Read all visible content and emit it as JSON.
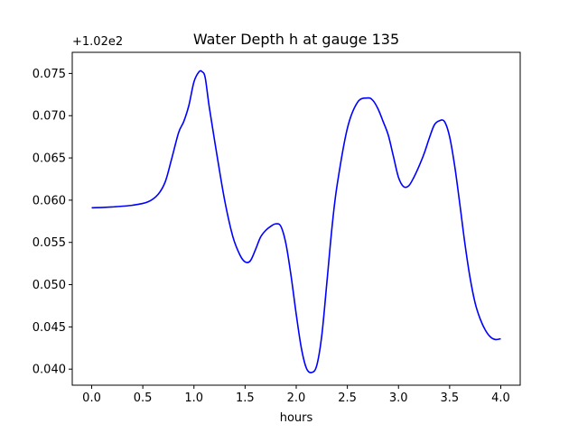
{
  "chart_data": {
    "type": "line",
    "title": "Water Depth h at gauge 135",
    "xlabel": "hours",
    "ylabel": "",
    "y_offset_label": "+1.02e2",
    "xlim": [
      -0.19,
      4.19
    ],
    "ylim": [
      0.0381,
      0.0775
    ],
    "x_ticks": [
      0.0,
      0.5,
      1.0,
      1.5,
      2.0,
      2.5,
      3.0,
      3.5,
      4.0
    ],
    "x_tick_labels": [
      "0.0",
      "0.5",
      "1.0",
      "1.5",
      "2.0",
      "2.5",
      "3.0",
      "3.5",
      "4.0"
    ],
    "y_ticks": [
      0.04,
      0.045,
      0.05,
      0.055,
      0.06,
      0.065,
      0.07,
      0.075
    ],
    "y_tick_labels": [
      "0.040",
      "0.045",
      "0.050",
      "0.055",
      "0.060",
      "0.065",
      "0.070",
      "0.075"
    ],
    "grid": false,
    "series": [
      {
        "color": "#0000ff",
        "x": [
          0.0,
          0.2,
          0.4,
          0.55,
          0.65,
          0.72,
          0.78,
          0.85,
          0.9,
          0.95,
          1.0,
          1.05,
          1.08,
          1.11,
          1.15,
          1.22,
          1.3,
          1.38,
          1.45,
          1.5,
          1.55,
          1.6,
          1.65,
          1.7,
          1.75,
          1.8,
          1.85,
          1.9,
          1.95,
          2.0,
          2.05,
          2.1,
          2.15,
          2.2,
          2.25,
          2.3,
          2.35,
          2.4,
          2.5,
          2.6,
          2.7,
          2.75,
          2.8,
          2.85,
          2.9,
          2.95,
          3.0,
          3.05,
          3.1,
          3.15,
          3.2,
          3.25,
          3.3,
          3.35,
          3.4,
          3.45,
          3.5,
          3.55,
          3.6,
          3.65,
          3.7,
          3.75,
          3.8,
          3.85,
          3.9,
          3.95,
          4.0
        ],
        "y": [
          0.0591,
          0.0592,
          0.0594,
          0.0598,
          0.0607,
          0.0622,
          0.0648,
          0.068,
          0.0693,
          0.0712,
          0.074,
          0.0752,
          0.0752,
          0.0745,
          0.071,
          0.0657,
          0.06,
          0.0557,
          0.0535,
          0.0527,
          0.0528,
          0.0541,
          0.0556,
          0.0564,
          0.0569,
          0.0572,
          0.0569,
          0.0548,
          0.051,
          0.0465,
          0.0425,
          0.0401,
          0.0396,
          0.0404,
          0.044,
          0.0503,
          0.0568,
          0.0618,
          0.0685,
          0.0716,
          0.0721,
          0.0718,
          0.0708,
          0.0693,
          0.0677,
          0.0652,
          0.0627,
          0.0616,
          0.0617,
          0.0627,
          0.064,
          0.0655,
          0.0673,
          0.0689,
          0.0694,
          0.0693,
          0.0675,
          0.064,
          0.0595,
          0.0548,
          0.0508,
          0.0478,
          0.0459,
          0.0446,
          0.0438,
          0.0435,
          0.0436
        ]
      }
    ]
  }
}
